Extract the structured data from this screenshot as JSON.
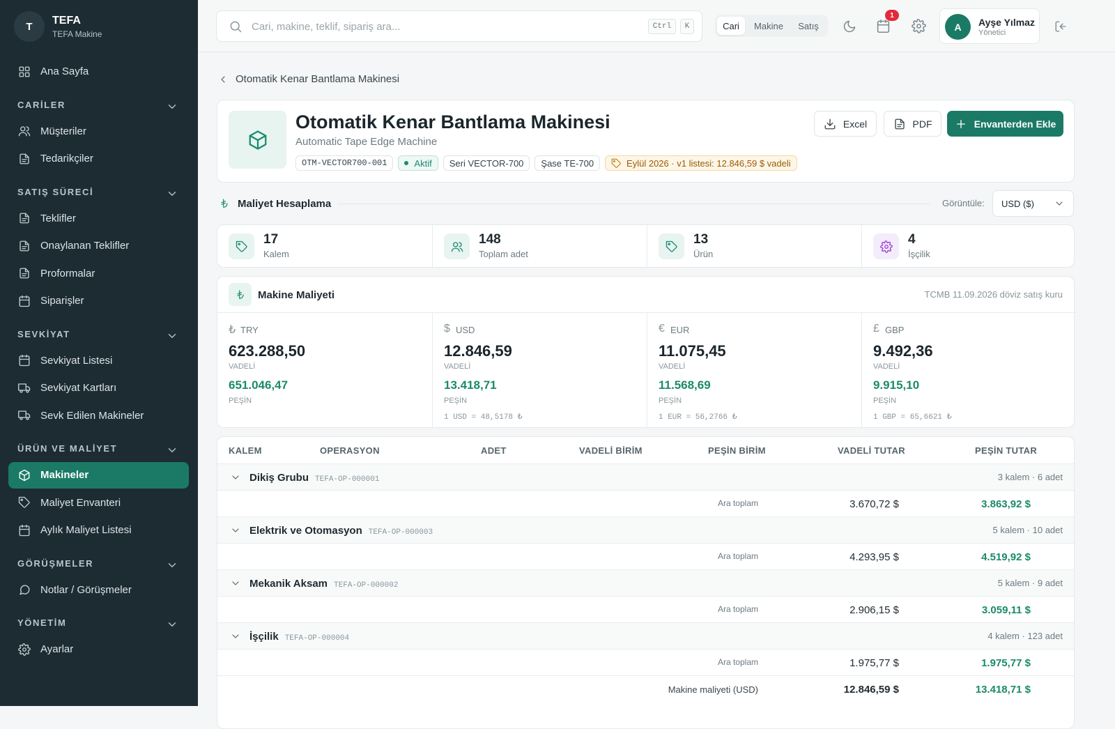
{
  "sidebar": {
    "brand": {
      "initial": "T",
      "name": "TEFA",
      "subtitle": "TEFA Makine"
    },
    "home": "Ana Sayfa",
    "sections": [
      {
        "title": "CARİLER",
        "items": [
          "Müşteriler",
          "Tedarikçiler"
        ]
      },
      {
        "title": "SATIŞ SÜRECİ",
        "items": [
          "Teklifler",
          "Onaylanan Teklifler",
          "Proformalar",
          "Siparişler"
        ]
      },
      {
        "title": "SEVKİYAT",
        "items": [
          "Sevkiyat Listesi",
          "Sevkiyat Kartları",
          "Sevk Edilen Makineler"
        ]
      },
      {
        "title": "ÜRÜN VE MALİYET",
        "items": [
          "Makineler",
          "Maliyet Envanteri",
          "Aylık Maliyet Listesi"
        ]
      },
      {
        "title": "GÖRÜŞMELER",
        "items": [
          "Notlar / Görüşmeler"
        ]
      },
      {
        "title": "YÖNETİM",
        "items": [
          "Ayarlar"
        ]
      }
    ],
    "active": "Makineler"
  },
  "topbar": {
    "search_placeholder": "Cari, makine, teklif, sipariş ara...",
    "keys": [
      "Ctrl",
      "K"
    ],
    "tabs": [
      "Cari",
      "Makine",
      "Satış"
    ],
    "notifications": 1,
    "user": {
      "initial": "A",
      "name": "Ayşe Yılmaz",
      "role": "Yönetici"
    }
  },
  "breadcrumb": "Otomatik Kenar Bantlama Makinesi",
  "header": {
    "title": "Otomatik Kenar Bantlama Makinesi",
    "subtitle": "Automatic Tape Edge Machine",
    "code": "OTM-VECTOR700-001",
    "status": "Aktif",
    "series": "Seri VECTOR-700",
    "chassis": "Şase TE-700",
    "price": "Eylül 2026 · v1 listesi: 12.846,59 $ vadeli",
    "buttons": [
      "Excel",
      "PDF",
      "Envanterden Ekle"
    ]
  },
  "cost": {
    "title": "Maliyet Hesaplama",
    "view_label": "Görüntüle:",
    "currency": "USD ($)"
  },
  "stats": [
    {
      "value": 17,
      "label": "Kalem"
    },
    {
      "value": 148,
      "label": "Toplam adet"
    },
    {
      "value": 13,
      "label": "Ürün"
    },
    {
      "value": 4,
      "label": "İşçilik"
    }
  ],
  "machine_cost": {
    "title": "Makine Maliyeti",
    "note": "TCMB 11.09.2026 döviz satış kuru",
    "currencies": [
      {
        "symbol": "₺",
        "code": "TRY",
        "vadeli": "623.288,50",
        "vadeli_label": "VADELİ",
        "pesin": "651.046,47",
        "pesin_label": "PEŞİN"
      },
      {
        "symbol": "$",
        "code": "USD",
        "vadeli": "12.846,59",
        "vadeli_label": "VADELİ",
        "pesin": "13.418,71",
        "pesin_label": "PEŞİN",
        "rate": "1 USD = 48,5178 ₺"
      },
      {
        "symbol": "€",
        "code": "EUR",
        "vadeli": "11.075,45",
        "vadeli_label": "VADELİ",
        "pesin": "11.568,69",
        "pesin_label": "PEŞİN",
        "rate": "1 EUR = 56,2766 ₺"
      },
      {
        "symbol": "£",
        "code": "GBP",
        "vadeli": "9.492,36",
        "vadeli_label": "VADELİ",
        "pesin": "9.915,10",
        "pesin_label": "PEŞİN",
        "rate": "1 GBP = 65,6621 ₺"
      }
    ]
  },
  "table": {
    "headers": [
      "KALEM",
      "OPERASYON",
      "ADET",
      "VADELİ BİRİM",
      "PEŞİN BİRİM",
      "VADELİ TUTAR",
      "PEŞİN TUTAR"
    ],
    "groups": [
      {
        "name": "Dikiş Grubu",
        "code": "TEFA-OP-000001",
        "summary": "3 kalem · 6 adet",
        "subtotal_label": "Ara toplam",
        "vadeli": "3.670,72 $",
        "pesin": "3.863,92 $"
      },
      {
        "name": "Elektrik ve Otomasyon",
        "code": "TEFA-OP-000003",
        "summary": "5 kalem · 10 adet",
        "subtotal_label": "Ara toplam",
        "vadeli": "4.293,95 $",
        "pesin": "4.519,92 $"
      },
      {
        "name": "Mekanik Aksam",
        "code": "TEFA-OP-000002",
        "summary": "5 kalem · 9 adet",
        "subtotal_label": "Ara toplam",
        "vadeli": "2.906,15 $",
        "pesin": "3.059,11 $"
      },
      {
        "name": "İşçilik",
        "code": "TEFA-OP-000004",
        "summary": "4 kalem · 123 adet",
        "subtotal_label": "Ara toplam",
        "vadeli": "1.975,77 $",
        "pesin": "1.975,77 $"
      }
    ],
    "total": {
      "label": "Makine maliyeti (USD)",
      "vadeli": "12.846,59 $",
      "pesin": "13.418,71 $"
    }
  }
}
